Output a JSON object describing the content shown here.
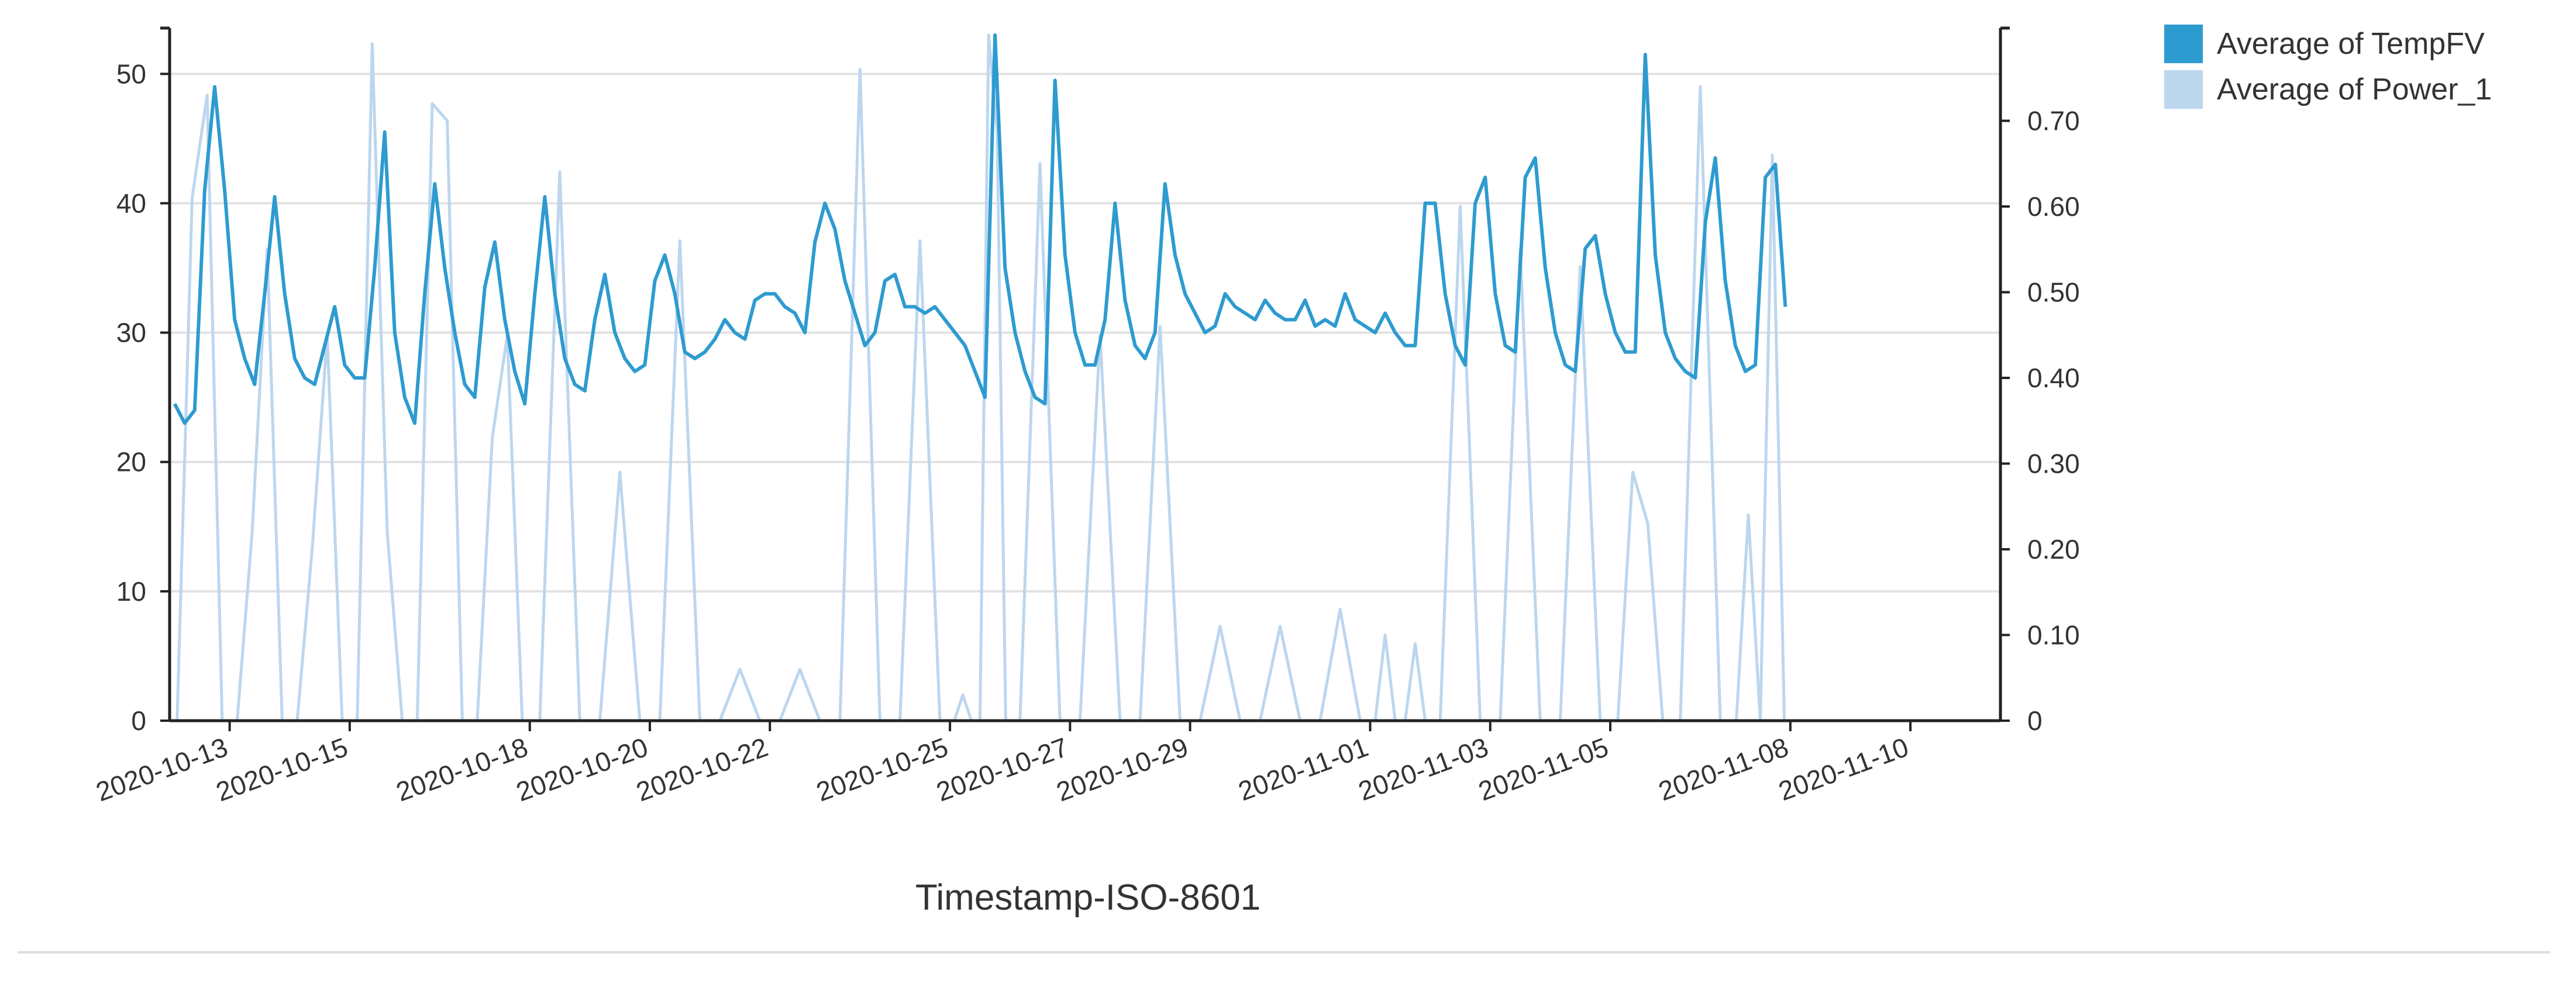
{
  "chart_data": {
    "type": "line",
    "xlabel": "Timestamp-ISO-8601",
    "x_start": "2020-10-12",
    "x_end": "2020-11-11",
    "xticks": [
      "2020-10-13",
      "2020-10-15",
      "2020-10-18",
      "2020-10-20",
      "2020-10-22",
      "2020-10-25",
      "2020-10-27",
      "2020-10-29",
      "2020-11-01",
      "2020-11-03",
      "2020-11-05",
      "2020-11-08",
      "2020-11-10"
    ],
    "y_left": {
      "range": [
        0,
        53
      ],
      "ticks": [
        "0",
        "10",
        "20",
        "30",
        "40",
        "50"
      ]
    },
    "y_right": {
      "range": [
        0,
        0.8
      ],
      "ticks": [
        "0",
        "0.10",
        "0.20",
        "0.30",
        "0.40",
        "0.50",
        "0.60",
        "0.70"
      ]
    },
    "grid": true,
    "legend_position": "top-right",
    "series": [
      {
        "name": "Average of TempFV",
        "axis": "left",
        "color": "#2e9bd0",
        "points": [
          [
            "2020-10-12",
            24.5
          ],
          [
            "2020-10-12",
            23
          ],
          [
            "2020-10-12",
            24
          ],
          [
            "2020-10-12",
            41
          ],
          [
            "2020-10-12",
            49
          ],
          [
            "2020-10-12",
            41
          ],
          [
            "2020-10-13",
            31
          ],
          [
            "2020-10-13",
            28
          ],
          [
            "2020-10-13",
            26
          ],
          [
            "2020-10-13",
            33
          ],
          [
            "2020-10-13",
            40.5
          ],
          [
            "2020-10-13",
            33
          ],
          [
            "2020-10-14",
            28
          ],
          [
            "2020-10-14",
            26.5
          ],
          [
            "2020-10-14",
            26
          ],
          [
            "2020-10-14",
            29
          ],
          [
            "2020-10-14",
            32
          ],
          [
            "2020-10-14",
            27.5
          ],
          [
            "2020-10-15",
            26.5
          ],
          [
            "2020-10-15",
            26.5
          ],
          [
            "2020-10-15",
            35
          ],
          [
            "2020-10-15",
            45.5
          ],
          [
            "2020-10-15",
            30
          ],
          [
            "2020-10-15",
            25
          ],
          [
            "2020-10-16",
            23
          ],
          [
            "2020-10-16",
            33
          ],
          [
            "2020-10-16",
            41.5
          ],
          [
            "2020-10-16",
            35
          ],
          [
            "2020-10-16",
            30
          ],
          [
            "2020-10-16",
            26
          ],
          [
            "2020-10-17",
            25
          ],
          [
            "2020-10-17",
            33.5
          ],
          [
            "2020-10-17",
            37
          ],
          [
            "2020-10-17",
            31
          ],
          [
            "2020-10-17",
            27
          ],
          [
            "2020-10-17",
            24.5
          ],
          [
            "2020-10-18",
            33
          ],
          [
            "2020-10-18",
            40.5
          ],
          [
            "2020-10-18",
            33
          ],
          [
            "2020-10-18",
            28
          ],
          [
            "2020-10-18",
            26
          ],
          [
            "2020-10-18",
            25.5
          ],
          [
            "2020-10-19",
            31
          ],
          [
            "2020-10-19",
            34.5
          ],
          [
            "2020-10-19",
            30
          ],
          [
            "2020-10-19",
            28
          ],
          [
            "2020-10-19",
            27
          ],
          [
            "2020-10-19",
            27.5
          ],
          [
            "2020-10-20",
            34
          ],
          [
            "2020-10-20",
            36
          ],
          [
            "2020-10-20",
            33
          ],
          [
            "2020-10-20",
            28.5
          ],
          [
            "2020-10-20",
            28
          ],
          [
            "2020-10-20",
            28.5
          ],
          [
            "2020-10-21",
            29.5
          ],
          [
            "2020-10-21",
            31
          ],
          [
            "2020-10-21",
            30
          ],
          [
            "2020-10-21",
            29.5
          ],
          [
            "2020-10-21",
            32.5
          ],
          [
            "2020-10-21",
            33
          ],
          [
            "2020-10-22",
            33
          ],
          [
            "2020-10-22",
            32
          ],
          [
            "2020-10-22",
            31.5
          ],
          [
            "2020-10-22",
            30
          ],
          [
            "2020-10-22",
            37
          ],
          [
            "2020-10-22",
            40
          ],
          [
            "2020-10-23",
            38
          ],
          [
            "2020-10-23",
            34
          ],
          [
            "2020-10-23",
            31.5
          ],
          [
            "2020-10-23",
            29
          ],
          [
            "2020-10-23",
            30
          ],
          [
            "2020-10-23",
            34
          ],
          [
            "2020-10-24",
            34.5
          ],
          [
            "2020-10-24",
            32
          ],
          [
            "2020-10-24",
            32
          ],
          [
            "2020-10-24",
            31.5
          ],
          [
            "2020-10-24",
            32
          ],
          [
            "2020-10-24",
            31
          ],
          [
            "2020-10-25",
            30
          ],
          [
            "2020-10-25",
            29
          ],
          [
            "2020-10-25",
            27
          ],
          [
            "2020-10-25",
            25
          ],
          [
            "2020-10-25",
            53
          ],
          [
            "2020-10-25",
            35
          ],
          [
            "2020-10-26",
            30
          ],
          [
            "2020-10-26",
            27
          ],
          [
            "2020-10-26",
            25
          ],
          [
            "2020-10-26",
            24.5
          ],
          [
            "2020-10-26",
            49.5
          ],
          [
            "2020-10-26",
            36
          ],
          [
            "2020-10-27",
            30
          ],
          [
            "2020-10-27",
            27.5
          ],
          [
            "2020-10-27",
            27.5
          ],
          [
            "2020-10-27",
            31
          ],
          [
            "2020-10-27",
            40
          ],
          [
            "2020-10-27",
            32.5
          ],
          [
            "2020-10-28",
            29
          ],
          [
            "2020-10-28",
            28
          ],
          [
            "2020-10-28",
            30
          ],
          [
            "2020-10-28",
            41.5
          ],
          [
            "2020-10-28",
            36
          ],
          [
            "2020-10-28",
            33
          ],
          [
            "2020-10-29",
            31.5
          ],
          [
            "2020-10-29",
            30
          ],
          [
            "2020-10-29",
            30.5
          ],
          [
            "2020-10-29",
            33
          ],
          [
            "2020-10-29",
            32
          ],
          [
            "2020-10-29",
            31.5
          ],
          [
            "2020-10-30",
            31
          ],
          [
            "2020-10-30",
            32.5
          ],
          [
            "2020-10-30",
            31.5
          ],
          [
            "2020-10-30",
            31
          ],
          [
            "2020-10-30",
            31
          ],
          [
            "2020-10-30",
            32.5
          ],
          [
            "2020-10-31",
            30.5
          ],
          [
            "2020-10-31",
            31
          ],
          [
            "2020-10-31",
            30.5
          ],
          [
            "2020-10-31",
            33
          ],
          [
            "2020-10-31",
            31
          ],
          [
            "2020-10-31",
            30.5
          ],
          [
            "2020-11-01",
            30
          ],
          [
            "2020-11-01",
            31.5
          ],
          [
            "2020-11-01",
            30
          ],
          [
            "2020-11-01",
            29
          ],
          [
            "2020-11-01",
            29
          ],
          [
            "2020-11-01",
            40
          ],
          [
            "2020-11-02",
            40
          ],
          [
            "2020-11-02",
            33
          ],
          [
            "2020-11-02",
            29
          ],
          [
            "2020-11-02",
            27.5
          ],
          [
            "2020-11-02",
            40
          ],
          [
            "2020-11-02",
            42
          ],
          [
            "2020-11-03",
            33
          ],
          [
            "2020-11-03",
            29
          ],
          [
            "2020-11-03",
            28.5
          ],
          [
            "2020-11-03",
            42
          ],
          [
            "2020-11-03",
            43.5
          ],
          [
            "2020-11-03",
            35
          ],
          [
            "2020-11-04",
            30
          ],
          [
            "2020-11-04",
            27.5
          ],
          [
            "2020-11-04",
            27
          ],
          [
            "2020-11-04",
            36.5
          ],
          [
            "2020-11-04",
            37.5
          ],
          [
            "2020-11-04",
            33
          ],
          [
            "2020-11-05",
            30
          ],
          [
            "2020-11-05",
            28.5
          ],
          [
            "2020-11-05",
            28.5
          ],
          [
            "2020-11-05",
            51.5
          ],
          [
            "2020-11-05",
            36
          ],
          [
            "2020-11-05",
            30
          ],
          [
            "2020-11-06",
            28
          ],
          [
            "2020-11-06",
            27
          ],
          [
            "2020-11-06",
            26.5
          ],
          [
            "2020-11-06",
            38.5
          ],
          [
            "2020-11-06",
            43.5
          ],
          [
            "2020-11-06",
            34
          ],
          [
            "2020-11-07",
            29
          ],
          [
            "2020-11-07",
            27
          ],
          [
            "2020-11-07",
            27.5
          ],
          [
            "2020-11-07",
            42
          ],
          [
            "2020-11-07",
            43
          ],
          [
            "2020-11-07",
            32
          ]
        ]
      },
      {
        "name": "Average of Power_1",
        "axis": "right",
        "color": "#bcd6ee",
        "points": [
          [
            "2020-10-12",
            0
          ],
          [
            "2020-10-12",
            0.61
          ],
          [
            "2020-10-12",
            0.73
          ],
          [
            "2020-10-12",
            0
          ],
          [
            "2020-10-13",
            0
          ],
          [
            "2020-10-13",
            0.22
          ],
          [
            "2020-10-13",
            0.55
          ],
          [
            "2020-10-13",
            0
          ],
          [
            "2020-10-14",
            0
          ],
          [
            "2020-10-14",
            0.2
          ],
          [
            "2020-10-14",
            0.45
          ],
          [
            "2020-10-14",
            0
          ],
          [
            "2020-10-15",
            0
          ],
          [
            "2020-10-15",
            0.79
          ],
          [
            "2020-10-15",
            0.22
          ],
          [
            "2020-10-15",
            0
          ],
          [
            "2020-10-16",
            0
          ],
          [
            "2020-10-16",
            0.72
          ],
          [
            "2020-10-16",
            0.7
          ],
          [
            "2020-10-16",
            0
          ],
          [
            "2020-10-17",
            0
          ],
          [
            "2020-10-17",
            0.33
          ],
          [
            "2020-10-17",
            0.45
          ],
          [
            "2020-10-17",
            0
          ],
          [
            "2020-10-18",
            0
          ],
          [
            "2020-10-18",
            0.64
          ],
          [
            "2020-10-18",
            0
          ],
          [
            "2020-10-19",
            0
          ],
          [
            "2020-10-19",
            0.29
          ],
          [
            "2020-10-19",
            0
          ],
          [
            "2020-10-20",
            0
          ],
          [
            "2020-10-20",
            0.56
          ],
          [
            "2020-10-20",
            0
          ],
          [
            "2020-10-21",
            0
          ],
          [
            "2020-10-21",
            0.06
          ],
          [
            "2020-10-21",
            0
          ],
          [
            "2020-10-22",
            0
          ],
          [
            "2020-10-22",
            0.06
          ],
          [
            "2020-10-22",
            0
          ],
          [
            "2020-10-23",
            0
          ],
          [
            "2020-10-23",
            0.76
          ],
          [
            "2020-10-23",
            0
          ],
          [
            "2020-10-24",
            0
          ],
          [
            "2020-10-24",
            0.56
          ],
          [
            "2020-10-24",
            0
          ],
          [
            "2020-10-25",
            0
          ],
          [
            "2020-10-25",
            0.03
          ],
          [
            "2020-10-25",
            0
          ],
          [
            "2020-10-25",
            0
          ],
          [
            "2020-10-25",
            0.8
          ],
          [
            "2020-10-25",
            0.69
          ],
          [
            "2020-10-25",
            0
          ],
          [
            "2020-10-26",
            0
          ],
          [
            "2020-10-26",
            0.65
          ],
          [
            "2020-10-26",
            0
          ],
          [
            "2020-10-27",
            0
          ],
          [
            "2020-10-27",
            0.45
          ],
          [
            "2020-10-27",
            0
          ],
          [
            "2020-10-28",
            0
          ],
          [
            "2020-10-28",
            0.46
          ],
          [
            "2020-10-28",
            0
          ],
          [
            "2020-10-29",
            0
          ],
          [
            "2020-10-29",
            0.11
          ],
          [
            "2020-10-29",
            0
          ],
          [
            "2020-10-30",
            0
          ],
          [
            "2020-10-30",
            0.11
          ],
          [
            "2020-10-30",
            0
          ],
          [
            "2020-10-31",
            0
          ],
          [
            "2020-10-31",
            0.13
          ],
          [
            "2020-10-31",
            0
          ],
          [
            "2020-11-01",
            0
          ],
          [
            "2020-11-01",
            0.1
          ],
          [
            "2020-11-01",
            0
          ],
          [
            "2020-11-01",
            0
          ],
          [
            "2020-11-01",
            0.09
          ],
          [
            "2020-11-01",
            0
          ],
          [
            "2020-11-02",
            0
          ],
          [
            "2020-11-02",
            0.6
          ],
          [
            "2020-11-02",
            0
          ],
          [
            "2020-11-03",
            0
          ],
          [
            "2020-11-03",
            0.55
          ],
          [
            "2020-11-03",
            0
          ],
          [
            "2020-11-04",
            0
          ],
          [
            "2020-11-04",
            0.53
          ],
          [
            "2020-11-04",
            0
          ],
          [
            "2020-11-05",
            0
          ],
          [
            "2020-11-05",
            0.29
          ],
          [
            "2020-11-05",
            0.23
          ],
          [
            "2020-11-05",
            0
          ],
          [
            "2020-11-06",
            0
          ],
          [
            "2020-11-06",
            0.74
          ],
          [
            "2020-11-06",
            0
          ],
          [
            "2020-11-07",
            0
          ],
          [
            "2020-11-07",
            0.24
          ],
          [
            "2020-11-07",
            0
          ],
          [
            "2020-11-07",
            0.66
          ],
          [
            "2020-11-07",
            0
          ]
        ]
      }
    ]
  }
}
